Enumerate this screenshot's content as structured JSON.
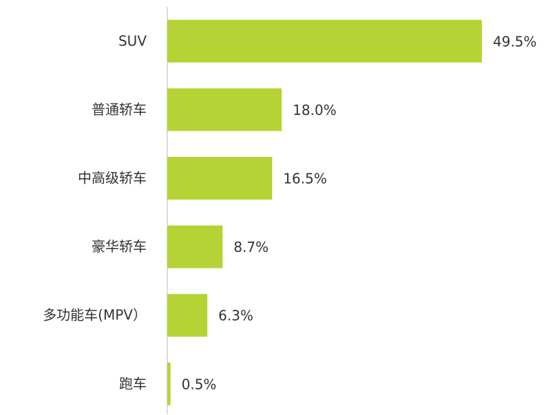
{
  "chart_data": {
    "type": "bar",
    "orientation": "horizontal",
    "categories": [
      "SUV",
      "普通轿车",
      "中高级轿车",
      "豪华轿车",
      "多功能车(MPV）",
      "跑车"
    ],
    "values": [
      49.5,
      18.0,
      16.5,
      8.7,
      6.3,
      0.5
    ],
    "value_labels": [
      "49.5%",
      "18.0%",
      "16.5%",
      "8.7%",
      "6.3%",
      "0.5%"
    ],
    "color": "#b5d334"
  }
}
